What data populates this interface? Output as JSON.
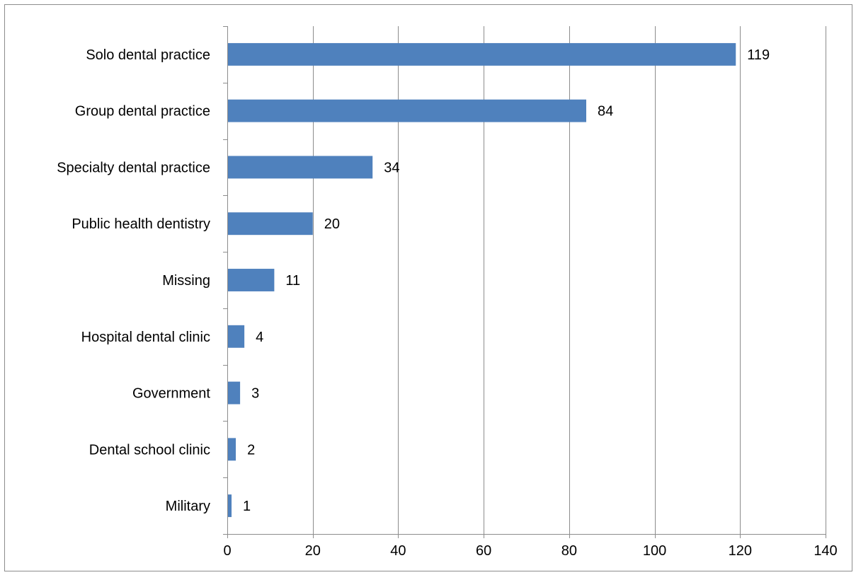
{
  "chart_data": {
    "type": "bar",
    "orientation": "horizontal",
    "categories": [
      "Solo dental practice",
      "Group dental practice",
      "Specialty dental practice",
      "Public health dentistry",
      "Missing",
      "Hospital dental clinic",
      "Government",
      "Dental school clinic",
      "Military"
    ],
    "values": [
      119,
      84,
      34,
      20,
      11,
      4,
      3,
      2,
      1
    ],
    "xlim": [
      0,
      140
    ],
    "xticks": [
      0,
      20,
      40,
      60,
      80,
      100,
      120,
      140
    ],
    "grid": "vertical",
    "legend": "none",
    "data_labels": true,
    "bar_color": "#4F81BD"
  }
}
